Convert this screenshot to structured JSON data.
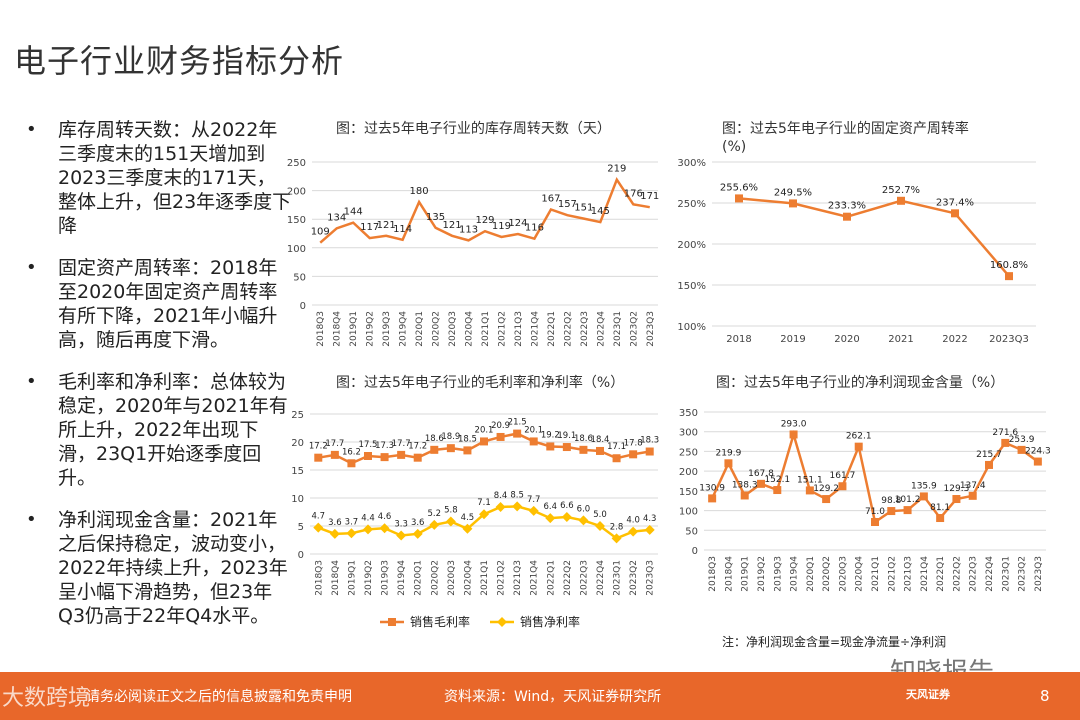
{
  "page": {
    "title": "电子行业财务指标分析",
    "bullets": [
      "库存周转天数：从2022年三季度末的151天增加到2023三季度末的171天，整体上升，但23年逐季度下降",
      "固定资产周转率：2018年至2020年固定资产周转率有所下降，2021年小幅升高，随后再度下滑。",
      "毛利率和净利率：总体较为稳定，2020年与2021年有所上升，2022年出现下滑，23Q1开始逐季度回升。",
      "净利润现金含量：2021年之后保持稳定，波动变小，2022年持续上升，2023年呈小幅下滑趋势，但23年Q3仍高于22年Q4水平。"
    ],
    "bullet_symbol": "•",
    "footer": {
      "disclaimer": "请务必阅读正文之后的信息披露和免责申明",
      "source": "资料来源：Wind，天风证券研究所",
      "page_number": "8"
    },
    "watermark_left": "大数跨境",
    "watermark_right": "知晓报告",
    "brand": "天风证券",
    "accent_color": "#e8672a",
    "orange": "#ed7d31",
    "yellow": "#ffc000"
  },
  "chart_data": [
    {
      "type": "line",
      "title": "图：过去5年电子行业的库存周转天数（天）",
      "categories": [
        "2018Q3",
        "2018Q4",
        "2019Q1",
        "2019Q2",
        "2019Q3",
        "2019Q4",
        "2020Q1",
        "2020Q2",
        "2020Q3",
        "2020Q4",
        "2021Q1",
        "2021Q2",
        "2021Q3",
        "2021Q4",
        "2022Q1",
        "2022Q2",
        "2022Q3",
        "2022Q4",
        "2023Q1",
        "2023Q2",
        "2023Q3"
      ],
      "values": [
        109,
        134,
        144,
        117,
        121,
        114,
        180,
        135,
        121,
        113,
        129,
        119,
        124,
        116,
        167,
        157,
        151,
        145,
        219,
        176,
        171
      ],
      "ylim": [
        0,
        250
      ],
      "yticks": [
        "0",
        "50",
        "100",
        "150",
        "200",
        "250"
      ],
      "grid": true
    },
    {
      "type": "line",
      "title": "图：过去5年电子行业的固定资产周转率",
      "title_line2": "(%)",
      "categories": [
        "2018",
        "2019",
        "2020",
        "2021",
        "2022",
        "2023Q3"
      ],
      "values": [
        255.6,
        249.5,
        233.3,
        252.7,
        237.4,
        160.8
      ],
      "labels": [
        "255.6%",
        "249.5%",
        "233.3%",
        "252.7%",
        "237.4%",
        "160.8%"
      ],
      "ylim": [
        100,
        300
      ],
      "yticks": [
        "100%",
        "150%",
        "200%",
        "250%",
        "300%"
      ],
      "grid": true
    },
    {
      "type": "line",
      "title": "图：过去5年电子行业的毛利率和净利率（%）",
      "categories": [
        "2018Q3",
        "2018Q4",
        "2019Q1",
        "2019Q2",
        "2019Q3",
        "2019Q4",
        "2020Q1",
        "2020Q2",
        "2020Q3",
        "2020Q4",
        "2021Q1",
        "2021Q2",
        "2021Q3",
        "2021Q4",
        "2022Q1",
        "2022Q2",
        "2022Q3",
        "2022Q4",
        "2023Q1",
        "2023Q2",
        "2023Q3"
      ],
      "series": [
        {
          "name": "销售毛利率",
          "values": [
            17.2,
            17.7,
            16.2,
            17.5,
            17.3,
            17.7,
            17.2,
            18.6,
            18.9,
            18.5,
            20.1,
            20.9,
            21.5,
            20.1,
            19.2,
            19.1,
            18.6,
            18.4,
            17.1,
            17.8,
            18.3
          ]
        },
        {
          "name": "销售净利率",
          "values": [
            4.7,
            3.6,
            3.7,
            4.4,
            4.6,
            3.3,
            3.6,
            5.2,
            5.8,
            4.5,
            7.1,
            8.4,
            8.5,
            7.7,
            6.4,
            6.6,
            6.0,
            5.0,
            2.8,
            4.0,
            4.3
          ]
        }
      ],
      "ylim": [
        0,
        25
      ],
      "yticks": [
        "0",
        "5",
        "10",
        "15",
        "20",
        "25"
      ],
      "legend": "bottom",
      "grid": true
    },
    {
      "type": "line",
      "title": "图：过去5年电子行业的净利润现金含量（%）",
      "categories": [
        "2018Q3",
        "2018Q4",
        "2019Q1",
        "2019Q2",
        "2019Q3",
        "2019Q4",
        "2020Q1",
        "2020Q2",
        "2020Q3",
        "2020Q4",
        "2021Q1",
        "2021Q2",
        "2021Q3",
        "2021Q4",
        "2022Q1",
        "2022Q2",
        "2022Q3",
        "2022Q4",
        "2023Q1",
        "2023Q2",
        "2023Q3"
      ],
      "values": [
        130.9,
        219.9,
        138.3,
        167.8,
        152.1,
        293.0,
        151.1,
        129.2,
        161.7,
        262.1,
        71.0,
        98.8,
        101.2,
        135.9,
        81.1,
        129.3,
        137.4,
        215.7,
        271.6,
        253.9,
        224.3
      ],
      "labels": [
        "130.9",
        "219.9",
        "138.3",
        "167.8",
        "152.1",
        "293.0",
        "151.1",
        "129.2",
        "161.7",
        "262.1",
        "71.0",
        "98.8",
        "101.2",
        "135.9",
        "81.1",
        "129.3",
        "137.4",
        "215.7",
        "271.6",
        "253.9",
        "224.3"
      ],
      "ylim": [
        0,
        350
      ],
      "yticks": [
        "0",
        "50",
        "100",
        "150",
        "200",
        "250",
        "300",
        "350"
      ],
      "note": "注：净利润现金含量=现金净流量÷净利润",
      "grid": true
    }
  ]
}
